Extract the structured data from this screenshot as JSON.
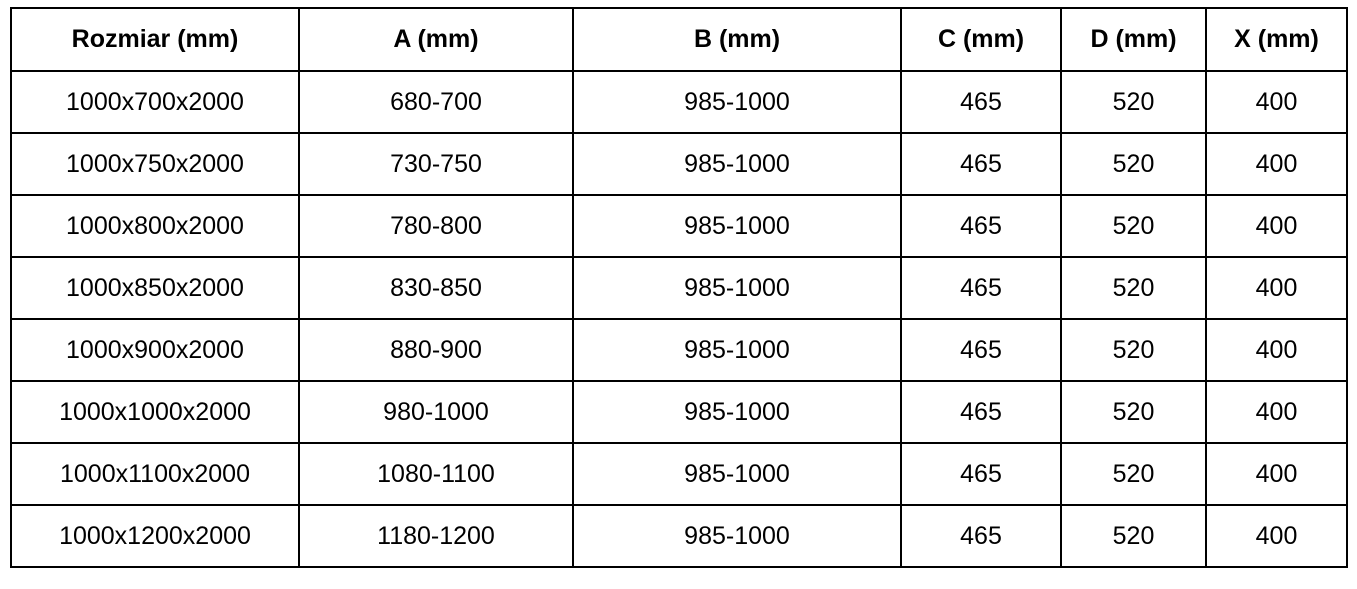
{
  "headers": [
    "Rozmiar (mm)",
    "A (mm)",
    "B (mm)",
    "C (mm)",
    "D (mm)",
    "X (mm)"
  ],
  "rows": [
    [
      "1000x700x2000",
      "680-700",
      "985-1000",
      "465",
      "520",
      "400"
    ],
    [
      "1000x750x2000",
      "730-750",
      "985-1000",
      "465",
      "520",
      "400"
    ],
    [
      "1000x800x2000",
      "780-800",
      "985-1000",
      "465",
      "520",
      "400"
    ],
    [
      "1000x850x2000",
      "830-850",
      "985-1000",
      "465",
      "520",
      "400"
    ],
    [
      "1000x900x2000",
      "880-900",
      "985-1000",
      "465",
      "520",
      "400"
    ],
    [
      "1000x1000x2000",
      "980-1000",
      "985-1000",
      "465",
      "520",
      "400"
    ],
    [
      "1000x1100x2000",
      "1080-1100",
      "985-1000",
      "465",
      "520",
      "400"
    ],
    [
      "1000x1200x2000",
      "1180-1200",
      "985-1000",
      "465",
      "520",
      "400"
    ]
  ]
}
